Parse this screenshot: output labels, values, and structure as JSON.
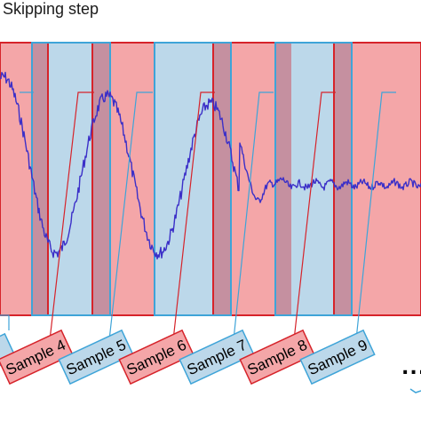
{
  "title": "Skipping step",
  "labels": [
    "Sample 4",
    "Sample 5",
    "Sample 6",
    "Sample 7",
    "Sample 8",
    "Sample 9"
  ],
  "ellipsis": "....",
  "colors": {
    "red_fill": "#f4a6a8",
    "red_stroke": "#d6232a",
    "blue_fill": "#bcd8ea",
    "blue_stroke": "#3ea4d8",
    "overlap_fill": "#c590a0",
    "signal": "#3b2fc8"
  }
}
